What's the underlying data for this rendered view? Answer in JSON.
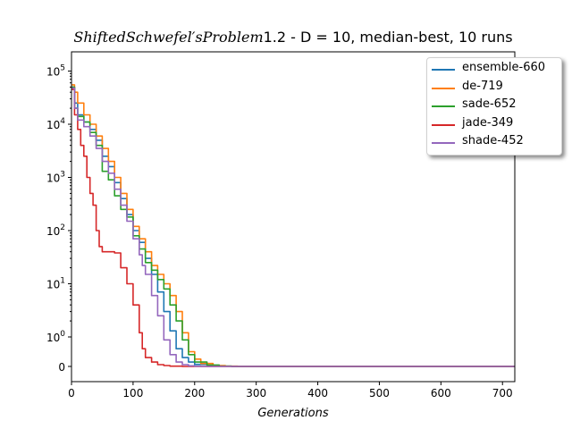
{
  "title": {
    "italic_part": "ShiftedSchwefel′sProblem",
    "regular_part": "1.2  - D = 10, median-best, 10 runs"
  },
  "chart_data": {
    "type": "line",
    "title": "ShiftedSchwefel′sProblem1.2  - D = 10, median-best, 10 runs",
    "xlabel": "Generations",
    "ylabel": "",
    "xlim": [
      0,
      720
    ],
    "ylim": [
      -0.5,
      100000
    ],
    "yscale": "symlog",
    "grid": false,
    "legend_position": "upper right",
    "x_ticks": [
      "0",
      "100",
      "200",
      "300",
      "400",
      "500",
      "600",
      "700"
    ],
    "y_ticks": [
      "0",
      "10^0",
      "10^1",
      "10^2",
      "10^3",
      "10^4",
      "10^5"
    ],
    "series": [
      {
        "name": "ensemble-660",
        "color": "#1f77b4",
        "points": [
          [
            0,
            50000
          ],
          [
            5,
            25000
          ],
          [
            10,
            15000
          ],
          [
            20,
            11000
          ],
          [
            30,
            8000
          ],
          [
            40,
            5000
          ],
          [
            50,
            2500
          ],
          [
            60,
            1600
          ],
          [
            70,
            800
          ],
          [
            80,
            400
          ],
          [
            90,
            200
          ],
          [
            100,
            100
          ],
          [
            110,
            60
          ],
          [
            120,
            30
          ],
          [
            130,
            15
          ],
          [
            140,
            7
          ],
          [
            150,
            3
          ],
          [
            160,
            1.3
          ],
          [
            170,
            0.6
          ],
          [
            180,
            0.3
          ],
          [
            190,
            0.15
          ],
          [
            200,
            0.07
          ],
          [
            220,
            0.03
          ],
          [
            240,
            0.01
          ],
          [
            260,
            0
          ],
          [
            720,
            0
          ]
        ]
      },
      {
        "name": "de-719",
        "color": "#ff7f0e",
        "points": [
          [
            0,
            55000
          ],
          [
            5,
            40000
          ],
          [
            10,
            25000
          ],
          [
            20,
            15000
          ],
          [
            30,
            10000
          ],
          [
            40,
            6000
          ],
          [
            50,
            3500
          ],
          [
            60,
            2000
          ],
          [
            70,
            1000
          ],
          [
            80,
            500
          ],
          [
            90,
            250
          ],
          [
            100,
            120
          ],
          [
            110,
            70
          ],
          [
            120,
            40
          ],
          [
            130,
            22
          ],
          [
            140,
            15
          ],
          [
            150,
            10
          ],
          [
            160,
            6
          ],
          [
            170,
            3
          ],
          [
            180,
            1.2
          ],
          [
            190,
            0.5
          ],
          [
            200,
            0.25
          ],
          [
            210,
            0.1
          ],
          [
            230,
            0.03
          ],
          [
            250,
            0.01
          ],
          [
            270,
            0
          ],
          [
            720,
            0
          ]
        ]
      },
      {
        "name": "sade-652",
        "color": "#2ca02c",
        "points": [
          [
            0,
            50000
          ],
          [
            5,
            20000
          ],
          [
            10,
            14000
          ],
          [
            20,
            11000
          ],
          [
            30,
            7000
          ],
          [
            40,
            4000
          ],
          [
            50,
            1300
          ],
          [
            60,
            900
          ],
          [
            70,
            450
          ],
          [
            80,
            250
          ],
          [
            90,
            180
          ],
          [
            100,
            80
          ],
          [
            110,
            45
          ],
          [
            120,
            25
          ],
          [
            130,
            18
          ],
          [
            140,
            12
          ],
          [
            150,
            8
          ],
          [
            160,
            4
          ],
          [
            170,
            2
          ],
          [
            180,
            0.9
          ],
          [
            190,
            0.4
          ],
          [
            200,
            0.15
          ],
          [
            220,
            0.05
          ],
          [
            240,
            0.01
          ],
          [
            260,
            0
          ],
          [
            720,
            0
          ]
        ]
      },
      {
        "name": "jade-349",
        "color": "#d62728",
        "points": [
          [
            0,
            45000
          ],
          [
            5,
            15000
          ],
          [
            10,
            8000
          ],
          [
            15,
            4000
          ],
          [
            20,
            2500
          ],
          [
            25,
            1000
          ],
          [
            30,
            500
          ],
          [
            35,
            300
          ],
          [
            40,
            100
          ],
          [
            45,
            50
          ],
          [
            50,
            40
          ],
          [
            60,
            40
          ],
          [
            70,
            38
          ],
          [
            80,
            20
          ],
          [
            90,
            10
          ],
          [
            100,
            4
          ],
          [
            110,
            1.2
          ],
          [
            115,
            0.6
          ],
          [
            120,
            0.3
          ],
          [
            130,
            0.15
          ],
          [
            140,
            0.06
          ],
          [
            150,
            0.03
          ],
          [
            160,
            0.01
          ],
          [
            180,
            0
          ],
          [
            720,
            0
          ]
        ]
      },
      {
        "name": "shade-452",
        "color": "#9467bd",
        "points": [
          [
            0,
            48000
          ],
          [
            5,
            20000
          ],
          [
            10,
            12000
          ],
          [
            20,
            9000
          ],
          [
            30,
            6000
          ],
          [
            40,
            3500
          ],
          [
            50,
            2000
          ],
          [
            60,
            1200
          ],
          [
            70,
            600
          ],
          [
            80,
            300
          ],
          [
            90,
            150
          ],
          [
            100,
            70
          ],
          [
            110,
            35
          ],
          [
            115,
            22
          ],
          [
            120,
            15
          ],
          [
            130,
            6
          ],
          [
            140,
            2.5
          ],
          [
            150,
            0.9
          ],
          [
            160,
            0.4
          ],
          [
            170,
            0.15
          ],
          [
            180,
            0.06
          ],
          [
            190,
            0.02
          ],
          [
            200,
            0.01
          ],
          [
            210,
            0
          ],
          [
            720,
            0
          ]
        ]
      }
    ]
  }
}
